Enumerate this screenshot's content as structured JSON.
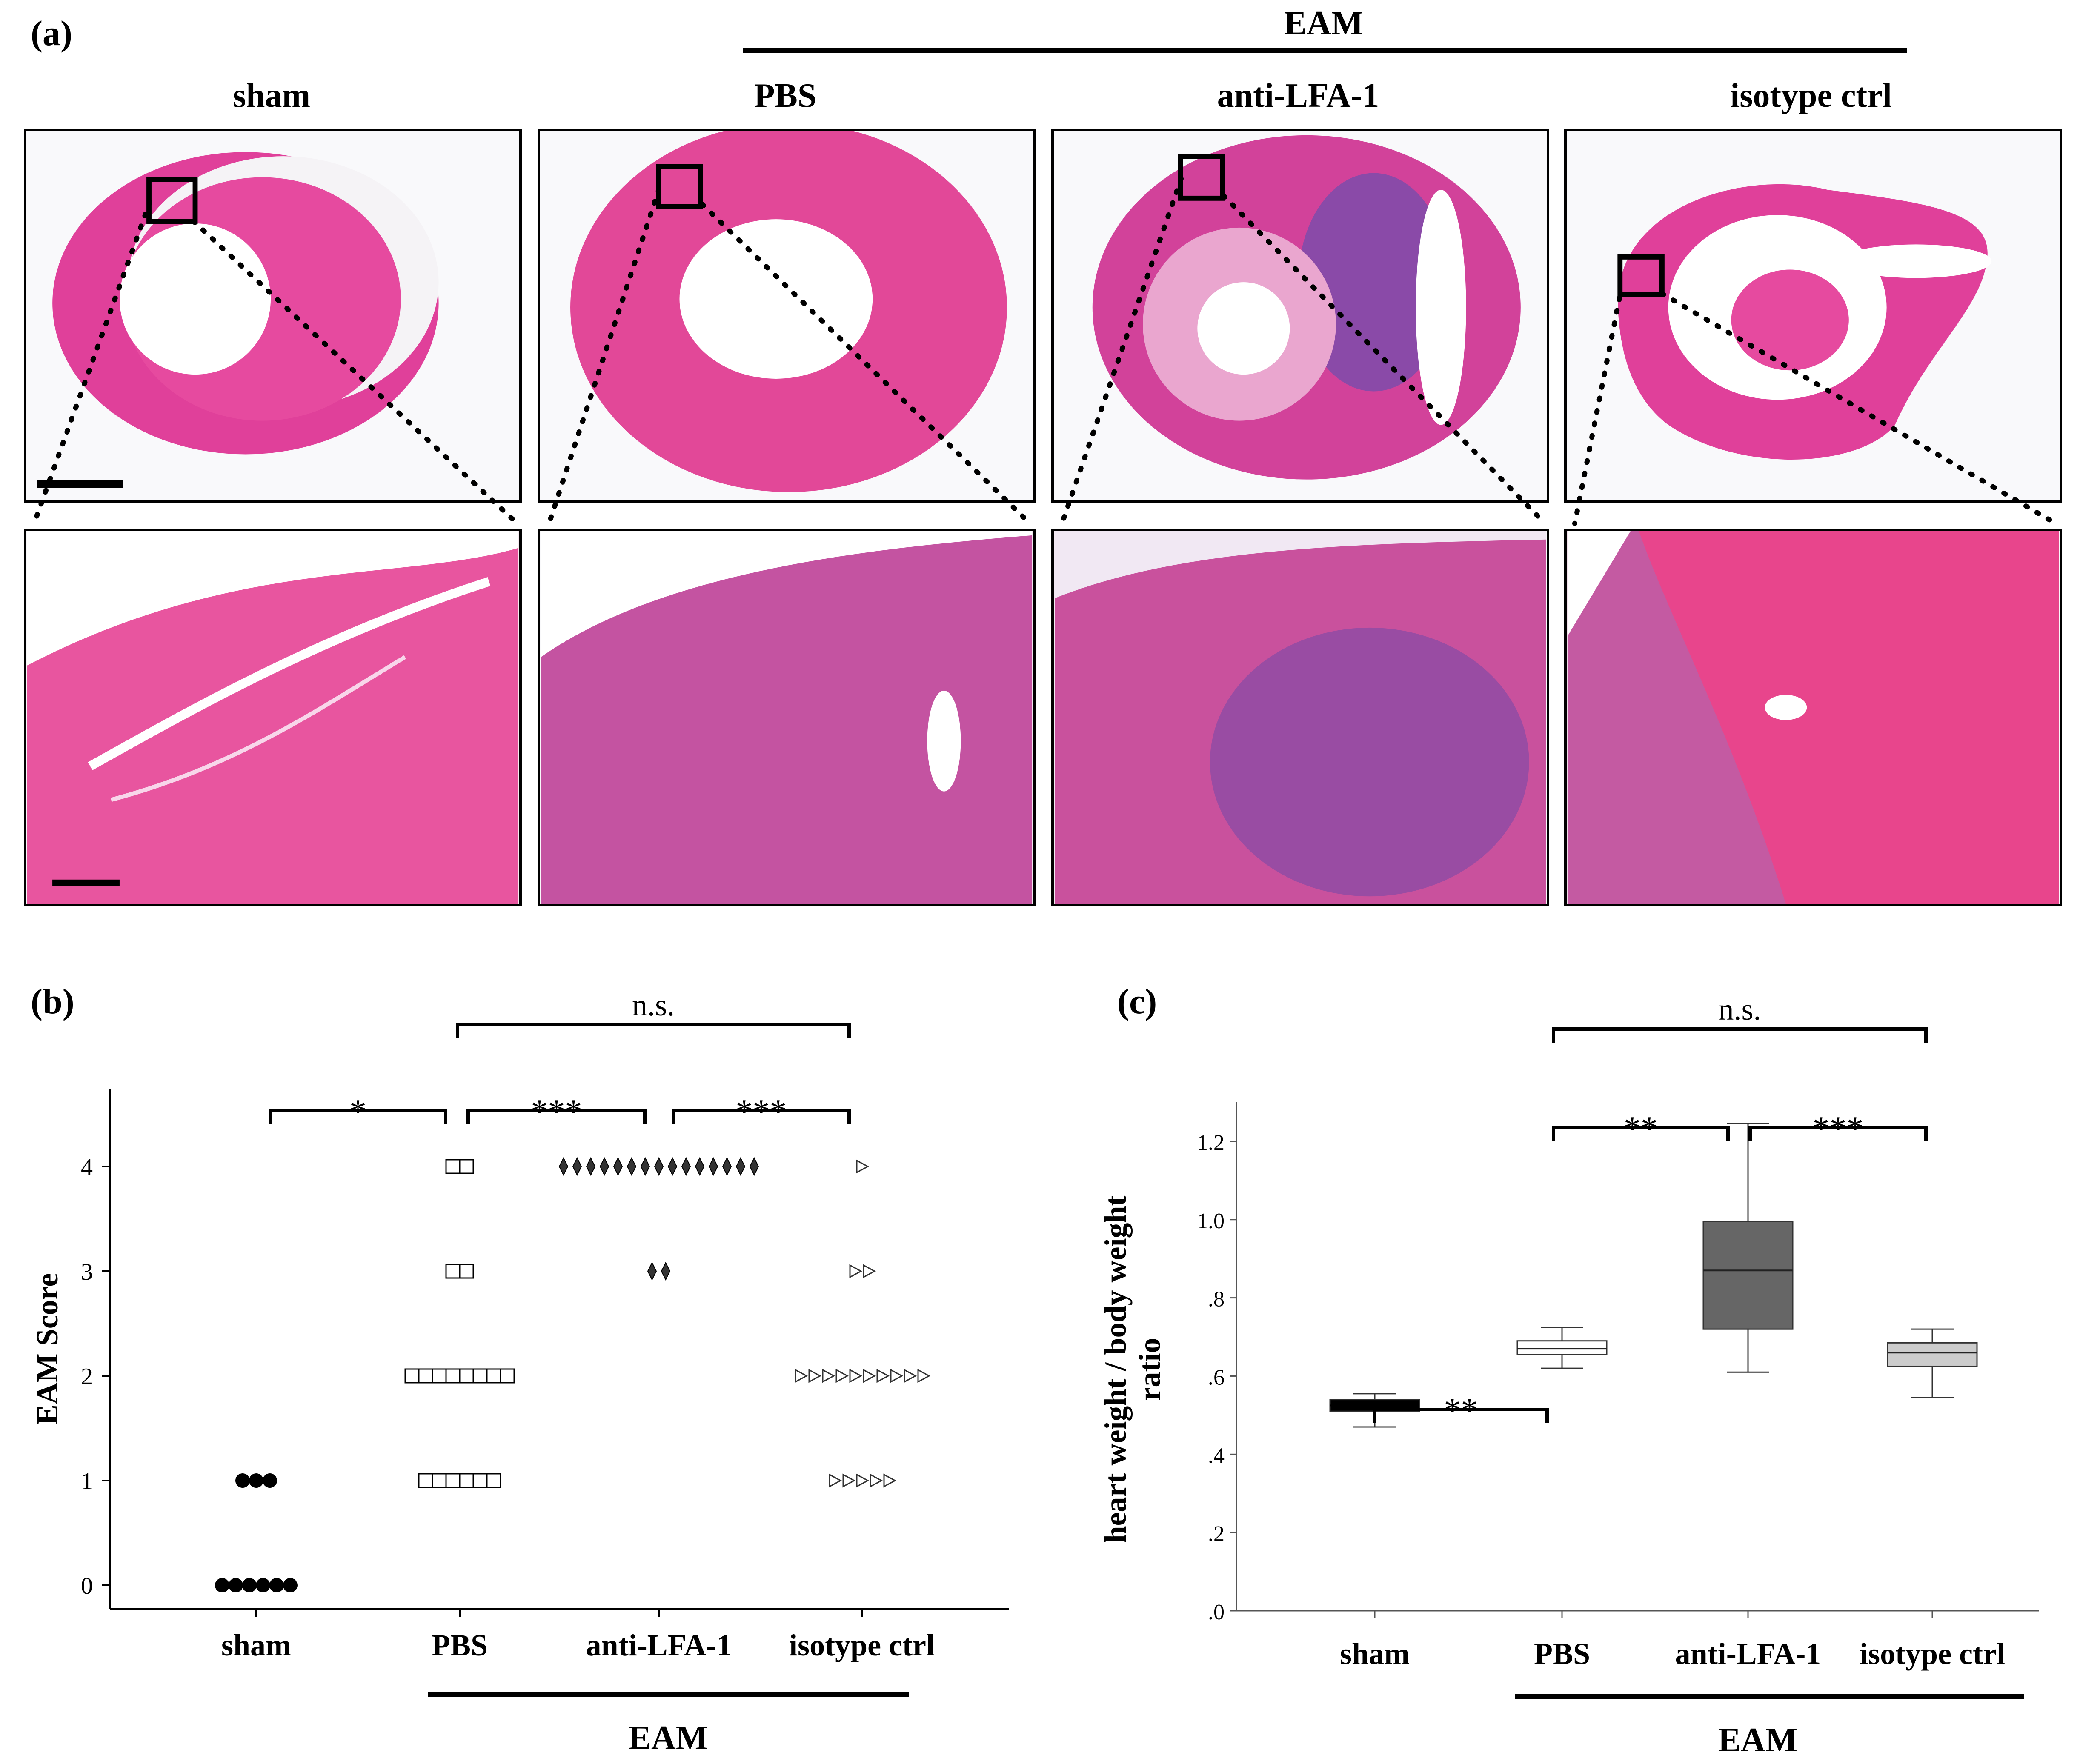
{
  "panel_a": {
    "label": "(a)",
    "group_label": "EAM",
    "columns": [
      {
        "title": "sham"
      },
      {
        "title": "PBS"
      },
      {
        "title": "anti-LFA-1"
      },
      {
        "title": "isotype ctrl"
      }
    ]
  },
  "panel_b": {
    "label": "(b)"
  },
  "panel_c": {
    "label": "(c)"
  },
  "chart_data": [
    {
      "type": "scatter",
      "ylabel": "EAM Score",
      "ylim": [
        0,
        4
      ],
      "yticks": [
        0,
        1,
        2,
        3,
        4
      ],
      "categories": [
        "sham",
        "PBS",
        "anti-LFA-1",
        "isotype ctrl"
      ],
      "group_label": "EAM",
      "series": [
        {
          "category": "sham",
          "marker": "circle",
          "counts": {
            "0": 6,
            "1": 3
          }
        },
        {
          "category": "PBS",
          "marker": "square",
          "counts": {
            "1": 6,
            "2": 8,
            "3": 2,
            "4": 2
          }
        },
        {
          "category": "anti-LFA-1",
          "marker": "diamond",
          "counts": {
            "3": 2,
            "4": 15
          }
        },
        {
          "category": "isotype ctrl",
          "marker": "triangle",
          "counts": {
            "1": 5,
            "2": 10,
            "3": 2,
            "4": 1
          }
        }
      ],
      "significance": [
        {
          "from": "sham",
          "to": "PBS",
          "label": "*"
        },
        {
          "from": "PBS",
          "to": "anti-LFA-1",
          "label": "***"
        },
        {
          "from": "anti-LFA-1",
          "to": "isotype ctrl",
          "label": "***"
        },
        {
          "from": "PBS",
          "to": "isotype ctrl",
          "label": "n.s."
        }
      ]
    },
    {
      "type": "box",
      "ylabel": "heart weight / body weight ratio",
      "ylim": [
        0,
        1.3
      ],
      "yticks": [
        ".0",
        ".2",
        ".4",
        ".6",
        ".8",
        "1.0",
        "1.2"
      ],
      "categories": [
        "sham",
        "PBS",
        "anti-LFA-1",
        "isotype ctrl"
      ],
      "group_label": "EAM",
      "boxes": [
        {
          "category": "sham",
          "min": 0.47,
          "q1": 0.51,
          "median": 0.525,
          "q3": 0.54,
          "max": 0.555,
          "color": "#000000"
        },
        {
          "category": "PBS",
          "min": 0.62,
          "q1": 0.655,
          "median": 0.67,
          "q3": 0.69,
          "max": 0.725,
          "color": "#ffffff"
        },
        {
          "category": "anti-LFA-1",
          "min": 0.61,
          "q1": 0.72,
          "median": 0.87,
          "q3": 0.995,
          "max": 1.245,
          "color": "#666666"
        },
        {
          "category": "isotype ctrl",
          "min": 0.545,
          "q1": 0.625,
          "median": 0.66,
          "q3": 0.685,
          "max": 0.72,
          "color": "#cccccc"
        }
      ],
      "significance": [
        {
          "from": "sham",
          "to": "PBS",
          "label": "**"
        },
        {
          "from": "PBS",
          "to": "anti-LFA-1",
          "label": "**"
        },
        {
          "from": "anti-LFA-1",
          "to": "isotype ctrl",
          "label": "***"
        },
        {
          "from": "PBS",
          "to": "isotype ctrl",
          "label": "n.s."
        }
      ]
    }
  ]
}
